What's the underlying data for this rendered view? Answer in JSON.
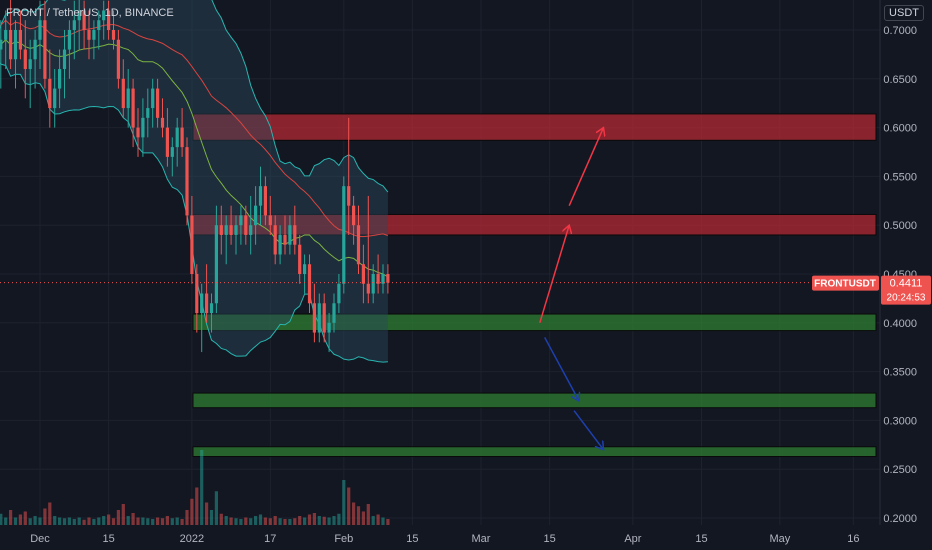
{
  "header": {
    "symbol": "FRONT / TetherUS, 1D, BINANCE",
    "currency": "USDT"
  },
  "price_tag": {
    "symbol": "FRONTUSDT",
    "price": "0.4411",
    "countdown": "20:24:53"
  },
  "colors": {
    "background": "#131722",
    "up": "#26a69a",
    "down": "#ef5350",
    "resistance": "#b22833",
    "support": "#2e7d32",
    "red_arrow": "#f23645",
    "blue_arrow": "#1e40af",
    "band_fill": "#2a4a5e",
    "band_line": "#27b5b0",
    "ma_red": "#d9443f",
    "ma_green": "#7cb342"
  },
  "chart_data": {
    "type": "candlestick",
    "title": "FRONT / TetherUS, 1D, BINANCE",
    "x_tick_labels": [
      "Dec",
      "15",
      "2022",
      "17",
      "Feb",
      "15",
      "Mar",
      "15",
      "Apr",
      "15",
      "May",
      "16"
    ],
    "y_tick_labels": [
      "0.7000",
      "0.6500",
      "0.6000",
      "0.5500",
      "0.5000",
      "0.4500",
      "0.4000",
      "0.3500",
      "0.3000",
      "0.2500",
      "0.2000"
    ],
    "ylim": [
      0.195,
      0.72
    ],
    "grid": true,
    "last_price": 0.4411,
    "zones": [
      {
        "kind": "resistance",
        "low": 0.587,
        "high": 0.614
      },
      {
        "kind": "resistance",
        "low": 0.49,
        "high": 0.511
      },
      {
        "kind": "support",
        "low": 0.392,
        "high": 0.409
      },
      {
        "kind": "support",
        "low": 0.313,
        "high": 0.328
      },
      {
        "kind": "support",
        "low": 0.263,
        "high": 0.273
      }
    ],
    "projection_arrows": [
      {
        "color": "red",
        "from": [
          "2022-03-13",
          0.4
        ],
        "to": [
          "2022-03-19",
          0.5
        ]
      },
      {
        "color": "red",
        "from": [
          "2022-03-19",
          0.52
        ],
        "to": [
          "2022-03-26",
          0.6
        ]
      },
      {
        "color": "blue",
        "from": [
          "2022-03-14",
          0.385
        ],
        "to": [
          "2022-03-21",
          0.32
        ]
      },
      {
        "color": "blue",
        "from": [
          "2022-03-20",
          0.31
        ],
        "to": [
          "2022-03-26",
          0.27
        ]
      }
    ],
    "candles_ohlc": [
      [
        0.72,
        0.73,
        0.66,
        0.68
      ],
      [
        0.68,
        0.71,
        0.64,
        0.69
      ],
      [
        0.69,
        0.72,
        0.66,
        0.7
      ],
      [
        0.7,
        0.74,
        0.66,
        0.67
      ],
      [
        0.67,
        0.71,
        0.64,
        0.7
      ],
      [
        0.7,
        0.72,
        0.67,
        0.68
      ],
      [
        0.68,
        0.71,
        0.63,
        0.66
      ],
      [
        0.66,
        0.69,
        0.62,
        0.67
      ],
      [
        0.67,
        0.7,
        0.64,
        0.69
      ],
      [
        0.69,
        0.73,
        0.66,
        0.71
      ],
      [
        0.71,
        0.73,
        0.64,
        0.65
      ],
      [
        0.65,
        0.68,
        0.6,
        0.62
      ],
      [
        0.62,
        0.66,
        0.6,
        0.64
      ],
      [
        0.64,
        0.68,
        0.62,
        0.66
      ],
      [
        0.66,
        0.7,
        0.63,
        0.68
      ],
      [
        0.68,
        0.71,
        0.65,
        0.7
      ],
      [
        0.7,
        0.73,
        0.67,
        0.71
      ],
      [
        0.71,
        0.74,
        0.68,
        0.72
      ],
      [
        0.72,
        0.73,
        0.68,
        0.7
      ],
      [
        0.7,
        0.72,
        0.67,
        0.69
      ],
      [
        0.69,
        0.71,
        0.67,
        0.7
      ],
      [
        0.7,
        0.72,
        0.68,
        0.71
      ],
      [
        0.71,
        0.73,
        0.69,
        0.72
      ],
      [
        0.72,
        0.73,
        0.69,
        0.7
      ],
      [
        0.7,
        0.72,
        0.68,
        0.69
      ],
      [
        0.69,
        0.7,
        0.64,
        0.65
      ],
      [
        0.65,
        0.67,
        0.61,
        0.62
      ],
      [
        0.62,
        0.66,
        0.6,
        0.64
      ],
      [
        0.64,
        0.65,
        0.58,
        0.6
      ],
      [
        0.6,
        0.62,
        0.57,
        0.59
      ],
      [
        0.59,
        0.63,
        0.57,
        0.61
      ],
      [
        0.61,
        0.64,
        0.59,
        0.62
      ],
      [
        0.62,
        0.65,
        0.6,
        0.64
      ],
      [
        0.64,
        0.65,
        0.6,
        0.61
      ],
      [
        0.61,
        0.63,
        0.59,
        0.6
      ],
      [
        0.6,
        0.62,
        0.56,
        0.57
      ],
      [
        0.57,
        0.59,
        0.55,
        0.58
      ],
      [
        0.58,
        0.61,
        0.56,
        0.6
      ],
      [
        0.6,
        0.62,
        0.57,
        0.58
      ],
      [
        0.58,
        0.59,
        0.5,
        0.51
      ],
      [
        0.51,
        0.53,
        0.44,
        0.45
      ],
      [
        0.45,
        0.46,
        0.39,
        0.41
      ],
      [
        0.41,
        0.44,
        0.37,
        0.43
      ],
      [
        0.43,
        0.46,
        0.4,
        0.41
      ],
      [
        0.41,
        0.43,
        0.39,
        0.42
      ],
      [
        0.42,
        0.52,
        0.41,
        0.5
      ],
      [
        0.5,
        0.52,
        0.47,
        0.49
      ],
      [
        0.49,
        0.51,
        0.46,
        0.5
      ],
      [
        0.5,
        0.52,
        0.48,
        0.49
      ],
      [
        0.49,
        0.51,
        0.47,
        0.5
      ],
      [
        0.5,
        0.52,
        0.48,
        0.51
      ],
      [
        0.51,
        0.52,
        0.48,
        0.49
      ],
      [
        0.49,
        0.53,
        0.47,
        0.5
      ],
      [
        0.5,
        0.54,
        0.48,
        0.52
      ],
      [
        0.52,
        0.56,
        0.5,
        0.54
      ],
      [
        0.54,
        0.55,
        0.5,
        0.51
      ],
      [
        0.51,
        0.53,
        0.49,
        0.5
      ],
      [
        0.5,
        0.51,
        0.46,
        0.47
      ],
      [
        0.47,
        0.5,
        0.46,
        0.49
      ],
      [
        0.49,
        0.51,
        0.47,
        0.48
      ],
      [
        0.48,
        0.51,
        0.47,
        0.5
      ],
      [
        0.5,
        0.52,
        0.47,
        0.48
      ],
      [
        0.48,
        0.49,
        0.44,
        0.45
      ],
      [
        0.45,
        0.47,
        0.43,
        0.46
      ],
      [
        0.46,
        0.47,
        0.41,
        0.42
      ],
      [
        0.42,
        0.44,
        0.38,
        0.39
      ],
      [
        0.39,
        0.43,
        0.38,
        0.42
      ],
      [
        0.42,
        0.43,
        0.38,
        0.39
      ],
      [
        0.39,
        0.41,
        0.37,
        0.4
      ],
      [
        0.4,
        0.43,
        0.39,
        0.42
      ],
      [
        0.42,
        0.45,
        0.41,
        0.44
      ],
      [
        0.44,
        0.55,
        0.43,
        0.54
      ],
      [
        0.54,
        0.61,
        0.49,
        0.52
      ],
      [
        0.52,
        0.53,
        0.48,
        0.5
      ],
      [
        0.5,
        0.52,
        0.45,
        0.46
      ],
      [
        0.46,
        0.48,
        0.42,
        0.44
      ],
      [
        0.44,
        0.53,
        0.42,
        0.43
      ],
      [
        0.43,
        0.46,
        0.42,
        0.45
      ],
      [
        0.45,
        0.47,
        0.43,
        0.44
      ],
      [
        0.44,
        0.46,
        0.43,
        0.45
      ],
      [
        0.45,
        0.46,
        0.43,
        0.4411
      ]
    ],
    "volume_relative": [
      0.12,
      0.15,
      0.1,
      0.2,
      0.1,
      0.14,
      0.18,
      0.09,
      0.12,
      0.1,
      0.22,
      0.3,
      0.12,
      0.1,
      0.09,
      0.1,
      0.08,
      0.1,
      0.07,
      0.1,
      0.08,
      0.1,
      0.12,
      0.14,
      0.09,
      0.2,
      0.28,
      0.12,
      0.16,
      0.1,
      0.1,
      0.09,
      0.08,
      0.1,
      0.09,
      0.12,
      0.09,
      0.1,
      0.08,
      0.2,
      0.35,
      0.5,
      1.0,
      0.3,
      0.2,
      0.45,
      0.15,
      0.12,
      0.1,
      0.09,
      0.08,
      0.1,
      0.09,
      0.12,
      0.14,
      0.1,
      0.09,
      0.12,
      0.09,
      0.08,
      0.08,
      0.09,
      0.12,
      0.1,
      0.14,
      0.16,
      0.12,
      0.11,
      0.1,
      0.12,
      0.15,
      0.6,
      0.5,
      0.3,
      0.25,
      0.18,
      0.28,
      0.12,
      0.14,
      0.1,
      0.08
    ]
  }
}
